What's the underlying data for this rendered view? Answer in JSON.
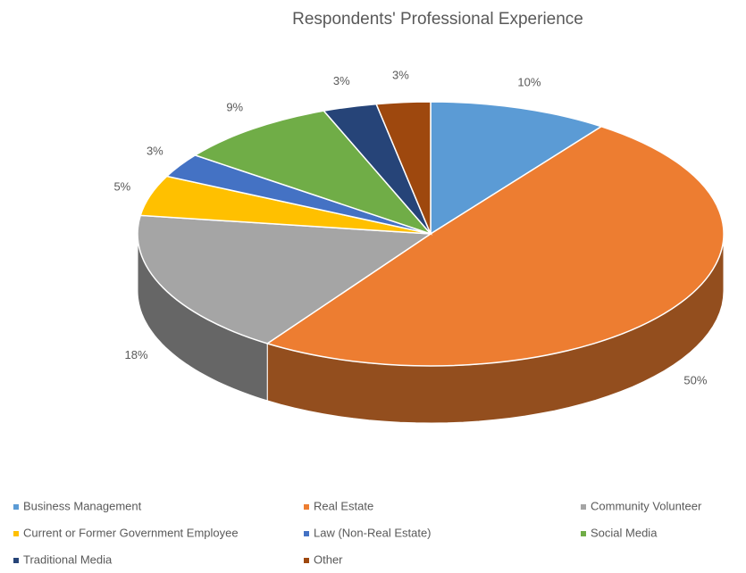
{
  "chart_data": {
    "type": "pie",
    "title": "Respondents' Professional Experience",
    "categories": [
      "Business Management",
      "Real Estate",
      "Community Volunteer",
      "Current or Former Government Employee",
      "Law (Non-Real Estate)",
      "Social Media",
      "Traditional Media",
      "Other"
    ],
    "values": [
      10,
      50,
      18,
      5,
      3,
      9,
      3,
      3
    ],
    "value_labels": [
      "10%",
      "50%",
      "18%",
      "5%",
      "3%",
      "9%",
      "3%",
      "3%"
    ],
    "colors": [
      "#5b9bd5",
      "#ed7d31",
      "#a5a5a5",
      "#ffc000",
      "#4472c4",
      "#70ad47",
      "#264478",
      "#9e480e"
    ],
    "legend": "bottom"
  }
}
